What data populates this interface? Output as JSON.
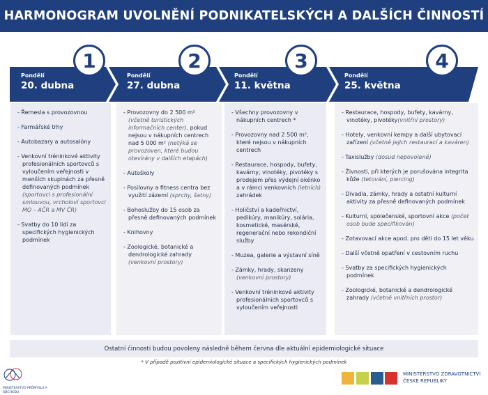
{
  "title": "HARMONOGRAM UVOLNĚNÍ PODNIKATELSKÝCH A DALŠÍCH ČINNOSTÍ",
  "colors": {
    "navy": "#1f3f7f",
    "panel": "#ebecf3"
  },
  "phases": [
    {
      "number": "1",
      "day": "Pondělí",
      "date": "20. dubna",
      "items": [
        [
          {
            "t": "- Řemesla s provozovnou"
          }
        ],
        [
          {
            "t": "- Farmářské trhy"
          }
        ],
        [
          {
            "t": "- Autobazary a autosalóny"
          }
        ],
        [
          {
            "t": "- Venkovní tréninkové aktivity profesionálních sportovců s vyloučením veřejnosti v menších skupinách za přesně definovaných podmínek "
          },
          {
            "t": "(sportovci s profesionální smlouvou, vrcholoví sportovci MO – AČR a MV ČR)",
            "i": true
          }
        ],
        [
          {
            "t": "- Svatby do 10 lidí za specifických hygienických podmínek"
          }
        ]
      ]
    },
    {
      "number": "2",
      "day": "Pondělí",
      "date": "27. dubna",
      "items": [
        [
          {
            "t": "- Provozovny do 2 500 m² "
          },
          {
            "t": "(včetně turistických informačních center),",
            "i": true
          },
          {
            "t": " pokud nejsou v nákupních centrech nad 5 000 m² "
          },
          {
            "t": "(netýká se provozoven, které budou otevírány v dalších etapách)",
            "i": true
          }
        ],
        [
          {
            "t": "- Autoškoly"
          }
        ],
        [
          {
            "t": "- Posilovny a fitness centra bez využití zázemí "
          },
          {
            "t": "(sprchy, šatny)",
            "i": true
          }
        ],
        [
          {
            "t": "- Bohoslužby do 15 osob za přesně definovaných podmínek"
          }
        ],
        [
          {
            "t": "- Knihovny"
          }
        ],
        [
          {
            "t": "- Zoologické, botanické a dendrologické zahrady "
          },
          {
            "t": "(venkovní prostory)",
            "i": true
          }
        ]
      ]
    },
    {
      "number": "3",
      "day": "Pondělí",
      "date": "11. května",
      "items": [
        [
          {
            "t": "- Všechny provozovny v nákupních centrech *"
          }
        ],
        [
          {
            "t": "- Provozovny nad 2 500 m², které nejsou v nákupních centrech"
          }
        ],
        [
          {
            "t": "- Restaurace, hospody, bufety, kavárny, vinotéky, pivotéky s prodejem přes výdejní okénko a v rámci venkovních "
          },
          {
            "t": "(letních)",
            "i": true
          },
          {
            "t": " zahrádek"
          }
        ],
        [
          {
            "t": "- Holičství a kadeřnictví, pedikúry, manikúry, solária, kosmetické, masérské, regenerační nebo rekondiční služby"
          }
        ],
        [
          {
            "t": "- Muzea, galerie a výstavní síně"
          }
        ],
        [
          {
            "t": "- Zámky, hrady, skanzeny "
          },
          {
            "t": "(venkovní prostory)",
            "i": true
          }
        ],
        [
          {
            "t": "- Venkovní tréninkové aktivity profesionálních sportovců s vyloučením veřejnosti"
          }
        ]
      ]
    },
    {
      "number": "4",
      "day": "Pondělí",
      "date": "25. května",
      "items": [
        [
          {
            "t": "- Restaurace, hospody, bufety, kavárny, vinotéky, pivotéky"
          },
          {
            "t": "(vnitřní prostory)",
            "i": true
          }
        ],
        [
          {
            "t": "- Hotely, venkovní kempy a další ubytovací zařízení "
          },
          {
            "t": "(včetně jejich restaurací a kaváren)",
            "i": true
          }
        ],
        [
          {
            "t": "- Taxislužby "
          },
          {
            "t": "(dosud nepovolené)",
            "i": true
          }
        ],
        [
          {
            "t": "- Živnosti, při kterých je porušována integrita kůže "
          },
          {
            "t": "(tetování, piercing)",
            "i": true
          }
        ],
        [
          {
            "t": "- Divadla, zámky, hrady a ostatní kulturní aktivity za přesně definovaných podmínek"
          }
        ],
        [
          {
            "t": "- Kulturní, společenské, sportovní akce "
          },
          {
            "t": "(počet osob bude specifikován)",
            "i": true
          }
        ],
        [
          {
            "t": "- Zotavovací akce apod. pro děti do 15 let věku"
          }
        ],
        [
          {
            "t": "- Další včetně opatření v cestovním ruchu"
          }
        ],
        [
          {
            "t": "- Svatby za specifických hygienických podmínek"
          }
        ],
        [
          {
            "t": "- Zoologické, botanické a dendrologické zahrady "
          },
          {
            "t": "(včetně vnitřních prostor)",
            "i": true
          }
        ]
      ]
    }
  ],
  "footer": "Ostatní činnosti budou povoleny následně během června dle aktuální epidemiologické situace",
  "note": "* V případě pozitivní epidemiologické situace a specifických hygienických podmínek",
  "logos": {
    "left": "MINISTERSTVO PRŮMYSLU A OBCHODU",
    "right_line1": "MINISTERSTVO ZDRAVOTNICTVÍ",
    "right_line2": "ČESKÉ REPUBLIKY"
  }
}
